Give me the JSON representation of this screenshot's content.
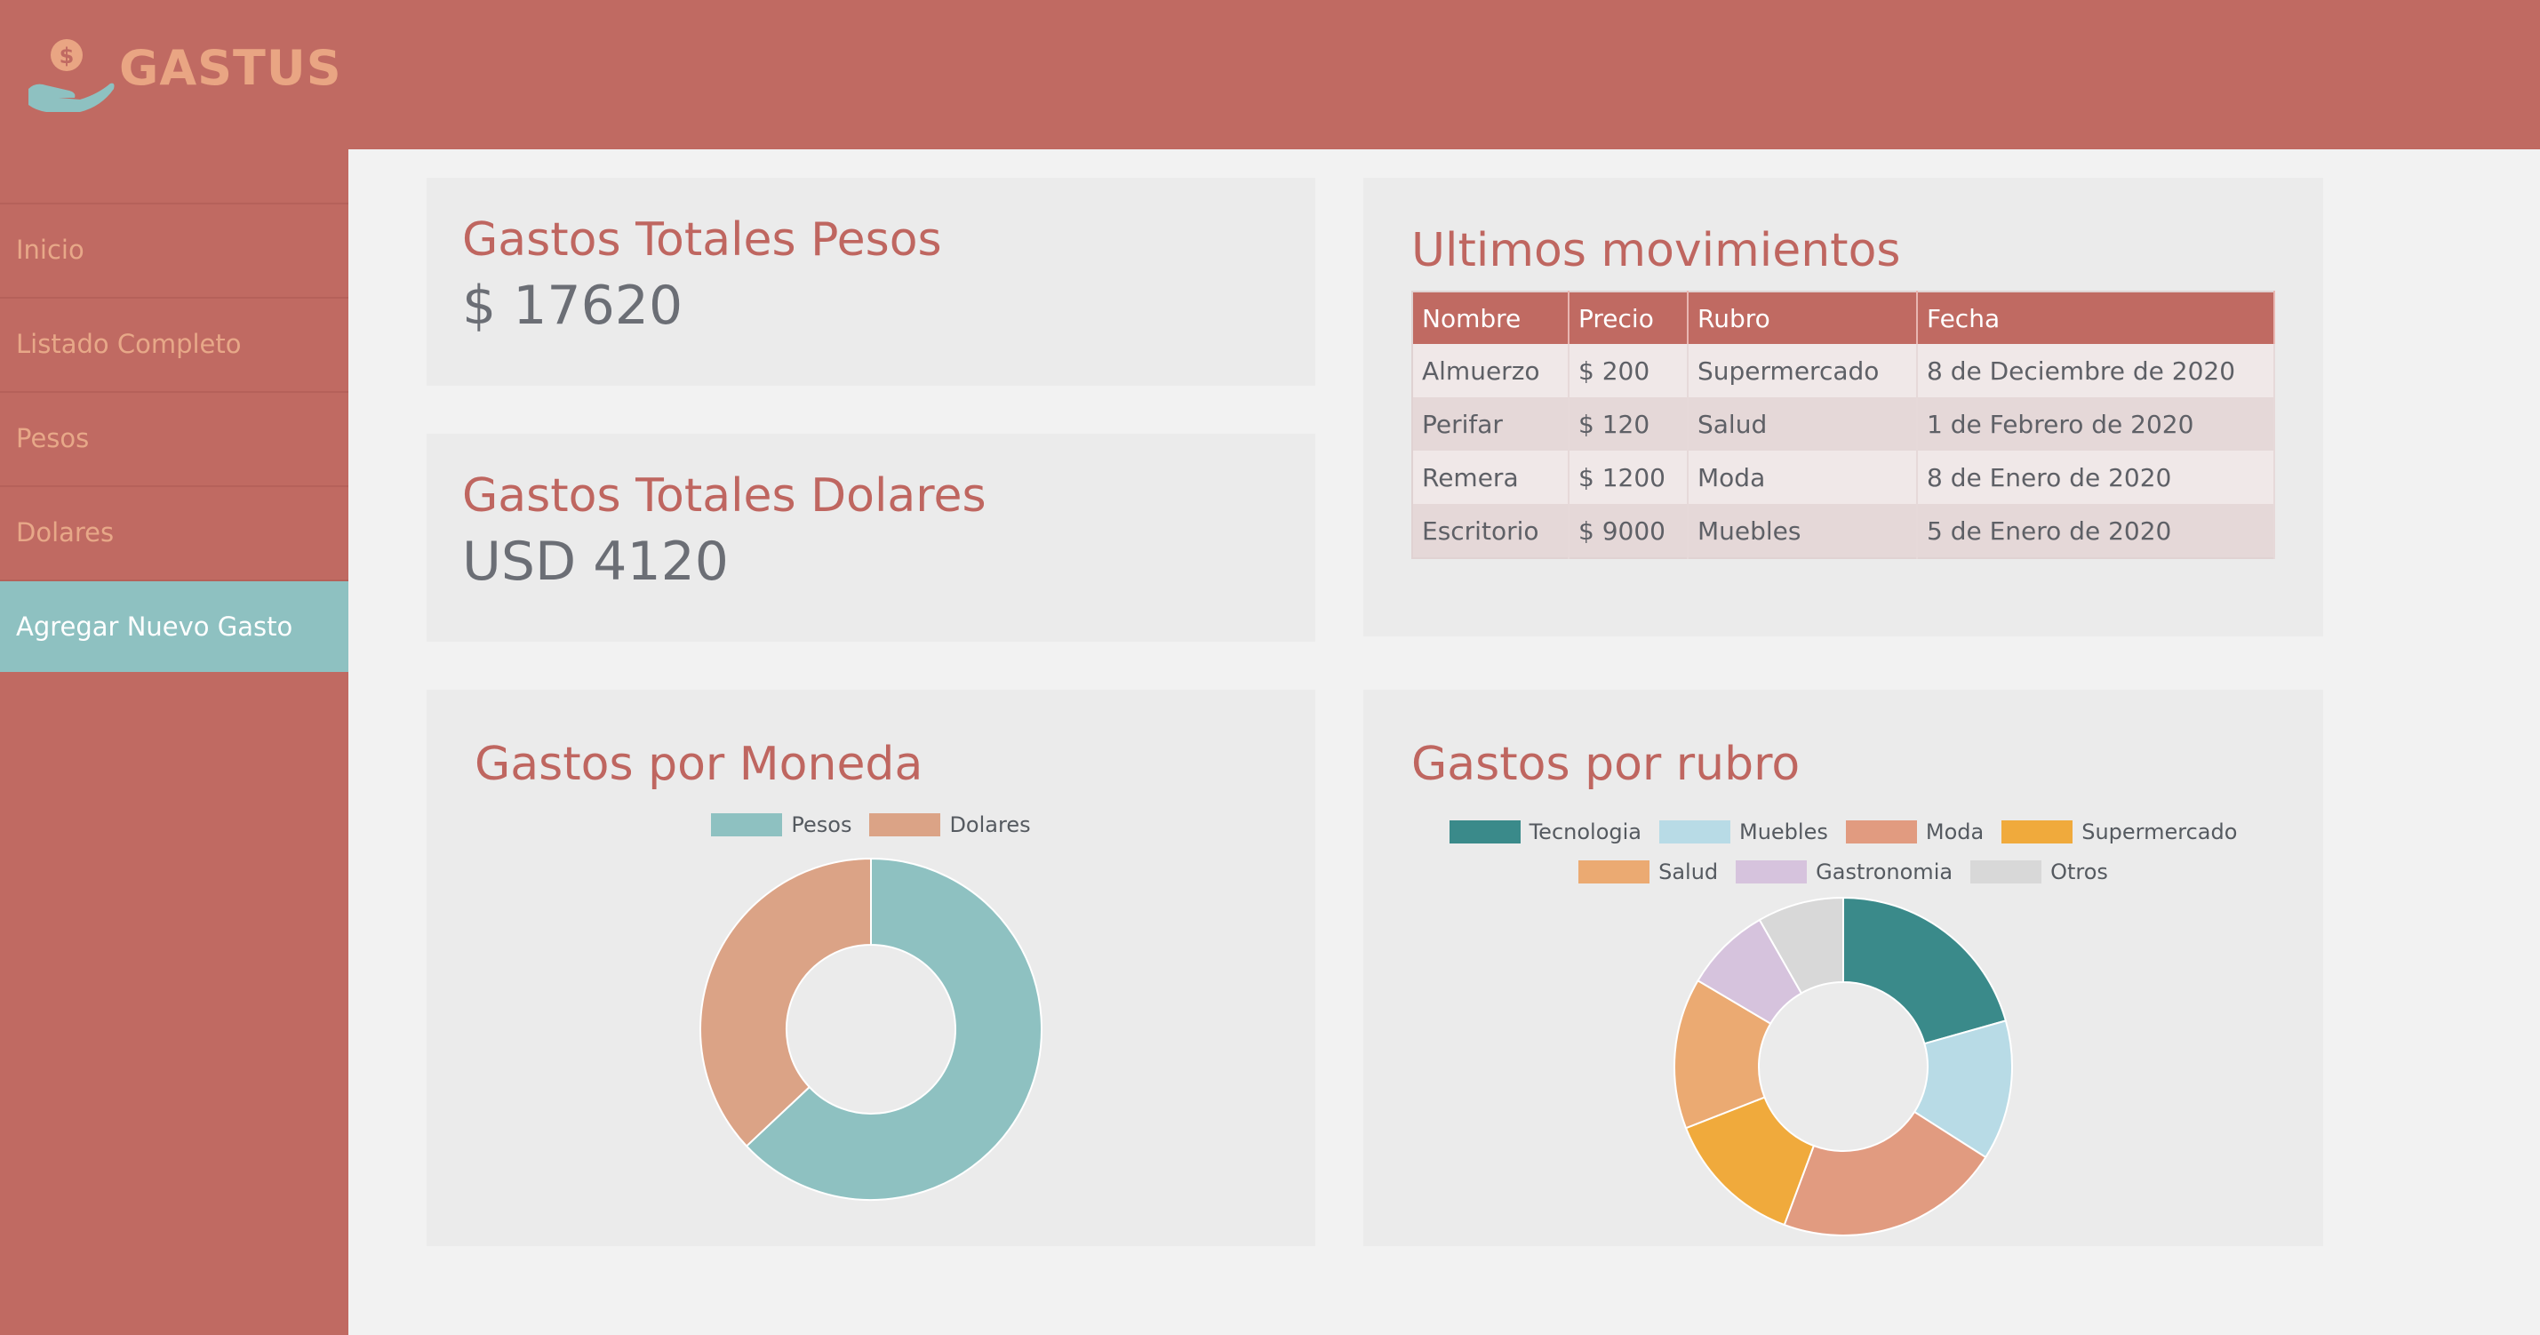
{
  "app": {
    "name": "GASTUS",
    "logo_icon": "hand-coin-icon",
    "logo_symbol": "$"
  },
  "sidebar": {
    "items": [
      {
        "label": "Inicio"
      },
      {
        "label": "Listado Completo"
      },
      {
        "label": "Pesos"
      },
      {
        "label": "Dolares"
      },
      {
        "label": "Agregar Nuevo Gasto",
        "active": true
      }
    ]
  },
  "totals": {
    "pesos": {
      "title": "Gastos Totales Pesos",
      "value": "$ 17620"
    },
    "dolares": {
      "title": "Gastos Totales Dolares",
      "value": "USD 4120"
    }
  },
  "movimientos": {
    "title": "Ultimos movimientos",
    "columns": [
      "Nombre",
      "Precio",
      "Rubro",
      "Fecha"
    ],
    "rows": [
      [
        "Almuerzo",
        "$ 200",
        "Supermercado",
        "8 de Deciembre de 2020"
      ],
      [
        "Perifar",
        "$ 120",
        "Salud",
        "1 de Febrero de 2020"
      ],
      [
        "Remera",
        "$ 1200",
        "Moda",
        "8 de Enero de 2020"
      ],
      [
        "Escritorio",
        "$ 9000",
        "Muebles",
        "5 de Enero de 2020"
      ]
    ]
  },
  "moneda": {
    "title": "Gastos por Moneda"
  },
  "rubro": {
    "title": "Gastos por rubro"
  },
  "colors": {
    "brand": "#c06a62",
    "accent": "#8ec1c1",
    "panel": "#ebebeb",
    "logo": "#e9a583"
  },
  "chart_data": [
    {
      "type": "pie",
      "categories": [
        "Pesos",
        "Dolares"
      ],
      "values": [
        63,
        37
      ],
      "colors": [
        "#8ec1c1",
        "#dba386"
      ],
      "legend": "top"
    },
    {
      "type": "pie",
      "categories": [
        "Tecnologia",
        "Muebles",
        "Moda",
        "Supermercado",
        "Salud",
        "Gastronomia",
        "Otros"
      ],
      "values": [
        20,
        13,
        21,
        13,
        14,
        8,
        8
      ],
      "colors": [
        "#3a8a8a",
        "#b8dbe6",
        "#e19b80",
        "#f0aa3c",
        "#ebaa72",
        "#d6c3dd",
        "#d8d8d8"
      ],
      "legend": "top"
    }
  ]
}
